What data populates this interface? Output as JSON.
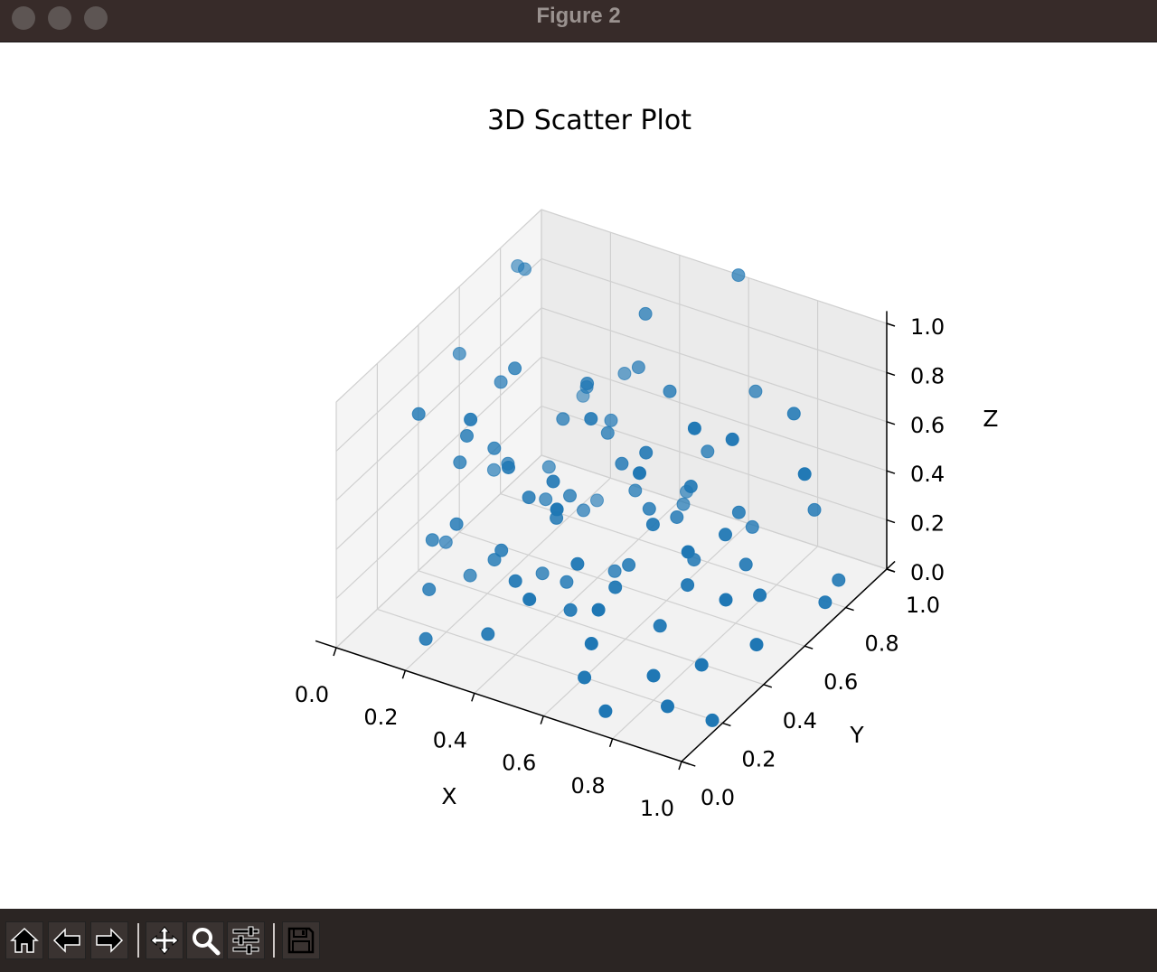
{
  "window": {
    "title": "Figure 2",
    "buttons": [
      "close",
      "minimize",
      "maximize"
    ]
  },
  "toolbar": {
    "items": [
      {
        "name": "home",
        "icon": "home-icon"
      },
      {
        "name": "back",
        "icon": "arrow-left-icon"
      },
      {
        "name": "forward",
        "icon": "arrow-right-icon"
      },
      {
        "name": "pan",
        "icon": "move-icon"
      },
      {
        "name": "zoom",
        "icon": "magnifier-icon"
      },
      {
        "name": "configure-subplots",
        "icon": "sliders-icon"
      },
      {
        "name": "save",
        "icon": "floppy-disk-icon"
      }
    ]
  },
  "chart_data": {
    "type": "scatter",
    "projection": "3d",
    "title": "3D Scatter Plot",
    "xlabel": "X",
    "ylabel": "Y",
    "zlabel": "Z",
    "xlim": [
      0.0,
      1.0
    ],
    "ylim": [
      0.0,
      1.0
    ],
    "zlim": [
      0.0,
      1.0
    ],
    "xticks": [
      "0.0",
      "0.2",
      "0.4",
      "0.6",
      "0.8",
      "1.0"
    ],
    "yticks": [
      "0.0",
      "0.2",
      "0.4",
      "0.6",
      "0.8",
      "1.0"
    ],
    "zticks": [
      "0.0",
      "0.2",
      "0.4",
      "0.6",
      "0.8",
      "1.0"
    ],
    "grid": true,
    "marker_color": "#1f77b4",
    "points": [
      [
        0.03,
        0.55,
        0.78
      ],
      [
        0.12,
        0.2,
        0.85
      ],
      [
        0.05,
        0.8,
        0.95
      ],
      [
        0.2,
        0.3,
        0.72
      ],
      [
        0.15,
        0.55,
        0.72
      ],
      [
        0.25,
        0.45,
        0.9
      ],
      [
        0.3,
        0.15,
        0.95
      ],
      [
        0.1,
        0.75,
        1.0
      ],
      [
        0.45,
        0.75,
        0.98
      ],
      [
        0.6,
        0.95,
        1.05
      ],
      [
        0.5,
        0.4,
        0.85
      ],
      [
        0.4,
        0.55,
        0.83
      ],
      [
        0.35,
        0.25,
        0.7
      ],
      [
        0.8,
        0.4,
        0.95
      ],
      [
        0.25,
        0.8,
        0.55
      ],
      [
        0.55,
        0.15,
        0.7
      ],
      [
        0.7,
        0.3,
        0.8
      ],
      [
        0.22,
        0.4,
        0.6
      ],
      [
        0.15,
        0.35,
        0.55
      ],
      [
        0.3,
        0.6,
        0.6
      ],
      [
        0.45,
        0.3,
        0.65
      ],
      [
        0.6,
        0.5,
        0.68
      ],
      [
        0.9,
        0.2,
        0.65
      ],
      [
        1.0,
        0.6,
        0.7
      ],
      [
        0.85,
        0.8,
        0.72
      ],
      [
        0.7,
        0.55,
        0.55
      ],
      [
        0.5,
        0.55,
        0.55
      ],
      [
        0.4,
        0.65,
        0.55
      ],
      [
        0.3,
        0.9,
        0.55
      ],
      [
        0.2,
        0.5,
        0.45
      ],
      [
        0.95,
        0.3,
        0.4
      ],
      [
        0.8,
        0.55,
        0.4
      ],
      [
        0.65,
        0.45,
        0.45
      ],
      [
        0.55,
        0.25,
        0.4
      ],
      [
        0.4,
        0.4,
        0.4
      ],
      [
        0.35,
        0.75,
        0.5
      ],
      [
        0.15,
        0.95,
        0.35
      ],
      [
        0.3,
        0.3,
        0.3
      ],
      [
        0.45,
        0.7,
        0.3
      ],
      [
        0.55,
        0.6,
        0.35
      ],
      [
        0.6,
        0.8,
        0.45
      ],
      [
        0.75,
        0.7,
        0.35
      ],
      [
        0.85,
        0.9,
        0.25
      ],
      [
        0.95,
        0.85,
        0.05
      ],
      [
        0.7,
        0.1,
        0.4
      ],
      [
        0.5,
        0.1,
        0.35
      ],
      [
        0.4,
        0.2,
        0.3
      ],
      [
        0.25,
        0.35,
        0.2
      ],
      [
        0.2,
        0.7,
        0.28
      ],
      [
        0.1,
        0.6,
        0.3
      ],
      [
        0.35,
        0.55,
        0.35
      ],
      [
        0.6,
        0.35,
        0.25
      ],
      [
        0.75,
        0.45,
        0.25
      ],
      [
        0.9,
        0.55,
        0.2
      ],
      [
        1.0,
        0.7,
        0.1
      ],
      [
        0.8,
        0.2,
        0.1
      ],
      [
        0.65,
        0.65,
        0.15
      ],
      [
        0.5,
        0.85,
        0.15
      ],
      [
        0.35,
        0.15,
        0.1
      ],
      [
        0.15,
        0.2,
        0.15
      ],
      [
        0.05,
        0.45,
        0.1
      ],
      [
        0.25,
        0.85,
        0.05
      ],
      [
        0.45,
        0.95,
        0.1
      ],
      [
        0.55,
        0.5,
        0.2
      ],
      [
        0.7,
        0.85,
        0.15
      ],
      [
        0.85,
        0.35,
        0.05
      ],
      [
        0.6,
        0.2,
        0.0
      ],
      [
        0.4,
        0.45,
        0.1
      ],
      [
        0.3,
        0.5,
        0.05
      ],
      [
        0.2,
        0.1,
        0.05
      ],
      [
        0.75,
        0.05,
        0.05
      ],
      [
        0.9,
        0.1,
        0.1
      ],
      [
        1.0,
        0.15,
        0.05
      ],
      [
        0.95,
        0.45,
        0.1
      ],
      [
        0.8,
        0.65,
        0.2
      ],
      [
        0.2,
        0.25,
        0.4
      ],
      [
        0.1,
        0.3,
        0.25
      ],
      [
        0.65,
        0.95,
        0.6
      ],
      [
        0.55,
        0.7,
        0.75
      ],
      [
        0.85,
        0.5,
        0.85
      ],
      [
        0.45,
        0.6,
        0.05
      ],
      [
        0.3,
        0.7,
        0.15
      ],
      [
        0.7,
        0.4,
        0.1
      ],
      [
        0.4,
        0.8,
        0.7
      ],
      [
        0.6,
        0.65,
        0.3
      ],
      [
        0.25,
        0.6,
        0.25
      ],
      [
        0.15,
        0.4,
        0.05
      ],
      [
        0.5,
        0.3,
        0.15
      ],
      [
        0.35,
        0.35,
        0.5
      ],
      [
        0.65,
        0.15,
        0.2
      ]
    ]
  }
}
